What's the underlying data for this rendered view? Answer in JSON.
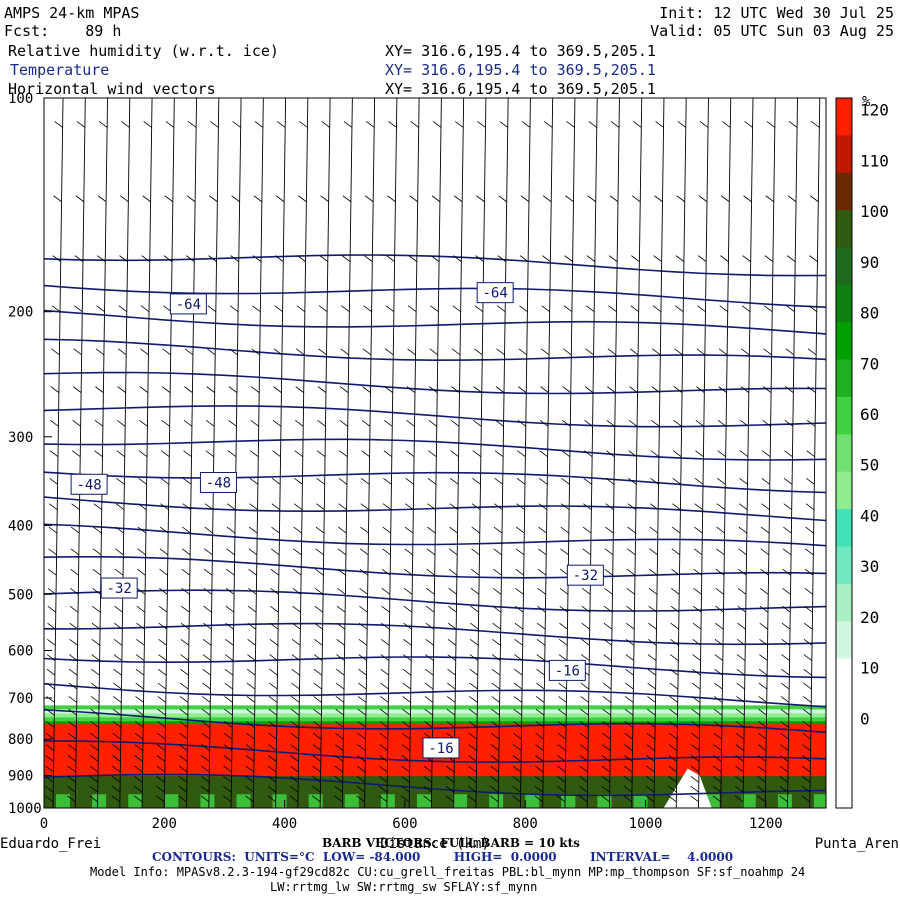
{
  "header": {
    "model": "AMPS 24-km MPAS",
    "fcst": "Fcst:    89 h",
    "init": "Init: 12 UTC Wed 30 Jul 25",
    "valid": "Valid: 05 UTC Sun 03 Aug 25",
    "fields": [
      {
        "label": "Relative humidity (w.r.t. ice)",
        "xy": "XY= 316.6,195.4 to 369.5,205.1",
        "color": "#000000"
      },
      {
        "label": "Temperature",
        "xy": "XY= 316.6,195.4 to 369.5,205.1",
        "color": "#1a2a8a"
      },
      {
        "label": "Horizontal wind vectors",
        "xy": "XY= 316.6,195.4 to 369.5,205.1",
        "color": "#000000"
      }
    ]
  },
  "chart_data": {
    "type": "heatmap",
    "title": "",
    "xlabel": "Distance (km)",
    "ylabel": "",
    "xlim": [
      0,
      1300
    ],
    "ylim": [
      1000,
      100
    ],
    "y_scale": "log",
    "x_ticks": [
      0,
      200,
      400,
      600,
      800,
      1000,
      1200
    ],
    "y_ticks": [
      100,
      200,
      300,
      400,
      500,
      600,
      700,
      800,
      900,
      1000
    ],
    "left_end_label": "Eduardo_Frei",
    "right_end_label": "Punta_Aren",
    "colorbar": {
      "unit": "%",
      "tick_labels": [
        0,
        10,
        20,
        30,
        40,
        50,
        60,
        70,
        80,
        90,
        100,
        110,
        120
      ],
      "colors": [
        "#ffffff",
        "#ffffff",
        "#ffffff",
        "#ffffff",
        "#d2f7e0",
        "#a8f0c4",
        "#70e8c0",
        "#40e0b8",
        "#90ee90",
        "#70e070",
        "#40d040",
        "#20b020",
        "#00a000",
        "#108010",
        "#1f6a1f",
        "#305a10",
        "#6a2a00",
        "#c01800",
        "#ff2000"
      ]
    },
    "rh_band": {
      "top_hpa": 760,
      "max_hpa": 840
    },
    "temperature_contours": {
      "units": "°C",
      "interval": 4,
      "labels": [
        {
          "value": -64,
          "x_km": 240,
          "p_hpa": 195
        },
        {
          "value": -64,
          "x_km": 750,
          "p_hpa": 188
        },
        {
          "value": -48,
          "x_km": 75,
          "p_hpa": 350
        },
        {
          "value": -48,
          "x_km": 290,
          "p_hpa": 348
        },
        {
          "value": -32,
          "x_km": 125,
          "p_hpa": 490
        },
        {
          "value": -32,
          "x_km": 900,
          "p_hpa": 470
        },
        {
          "value": -16,
          "x_km": 870,
          "p_hpa": 640
        },
        {
          "value": -16,
          "x_km": 660,
          "p_hpa": 823
        }
      ]
    },
    "wind_barbs": {
      "full_barb": "10 kts"
    }
  },
  "footer": {
    "xaxis_overlay": "BARB VECTORS: FULL BARB = 10 kts",
    "contours": "CONTOURS:  UNITS=°C  LOW= -84.000        HIGH=  0.0000        INTERVAL=    4.0000",
    "model_info_1": "Model Info: MPASv8.2.3-194-gf29cd82c CU:cu_grell_freitas PBL:bl_mynn MP:mp_thompson SF:sf_noahmp 24",
    "model_info_2": "LW:rrtmg_lw SW:rrtmg_sw SFLAY:sf_mynn"
  }
}
